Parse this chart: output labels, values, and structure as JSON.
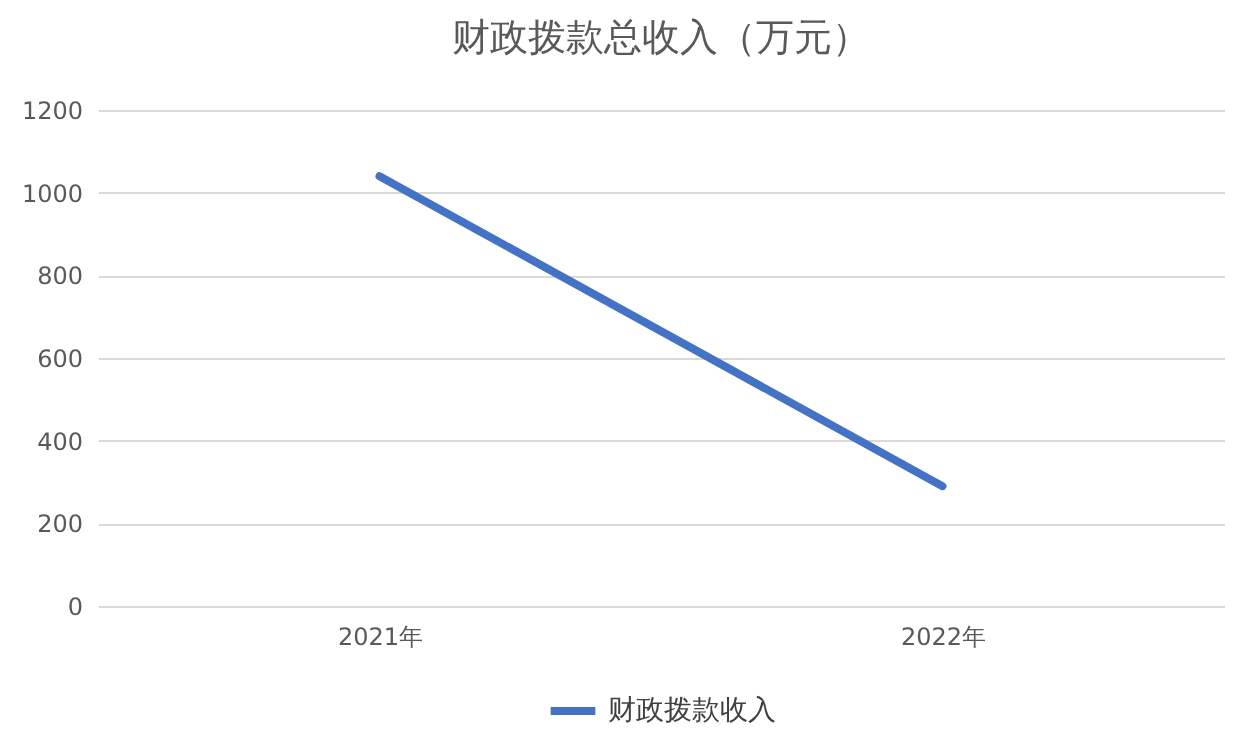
{
  "chart_data": {
    "type": "line",
    "title": "财政拨款总收入（万元）",
    "categories": [
      "2021年",
      "2022年"
    ],
    "series": [
      {
        "name": "财政拨款收入",
        "color": "#4472c4",
        "values": [
          1040,
          290
        ]
      }
    ],
    "ylim": [
      0,
      1200
    ],
    "yticks": [
      0,
      200,
      400,
      600,
      800,
      1000,
      1200
    ],
    "grid": "y",
    "legend": "bottom",
    "marker": "none",
    "line_style": "solid"
  }
}
